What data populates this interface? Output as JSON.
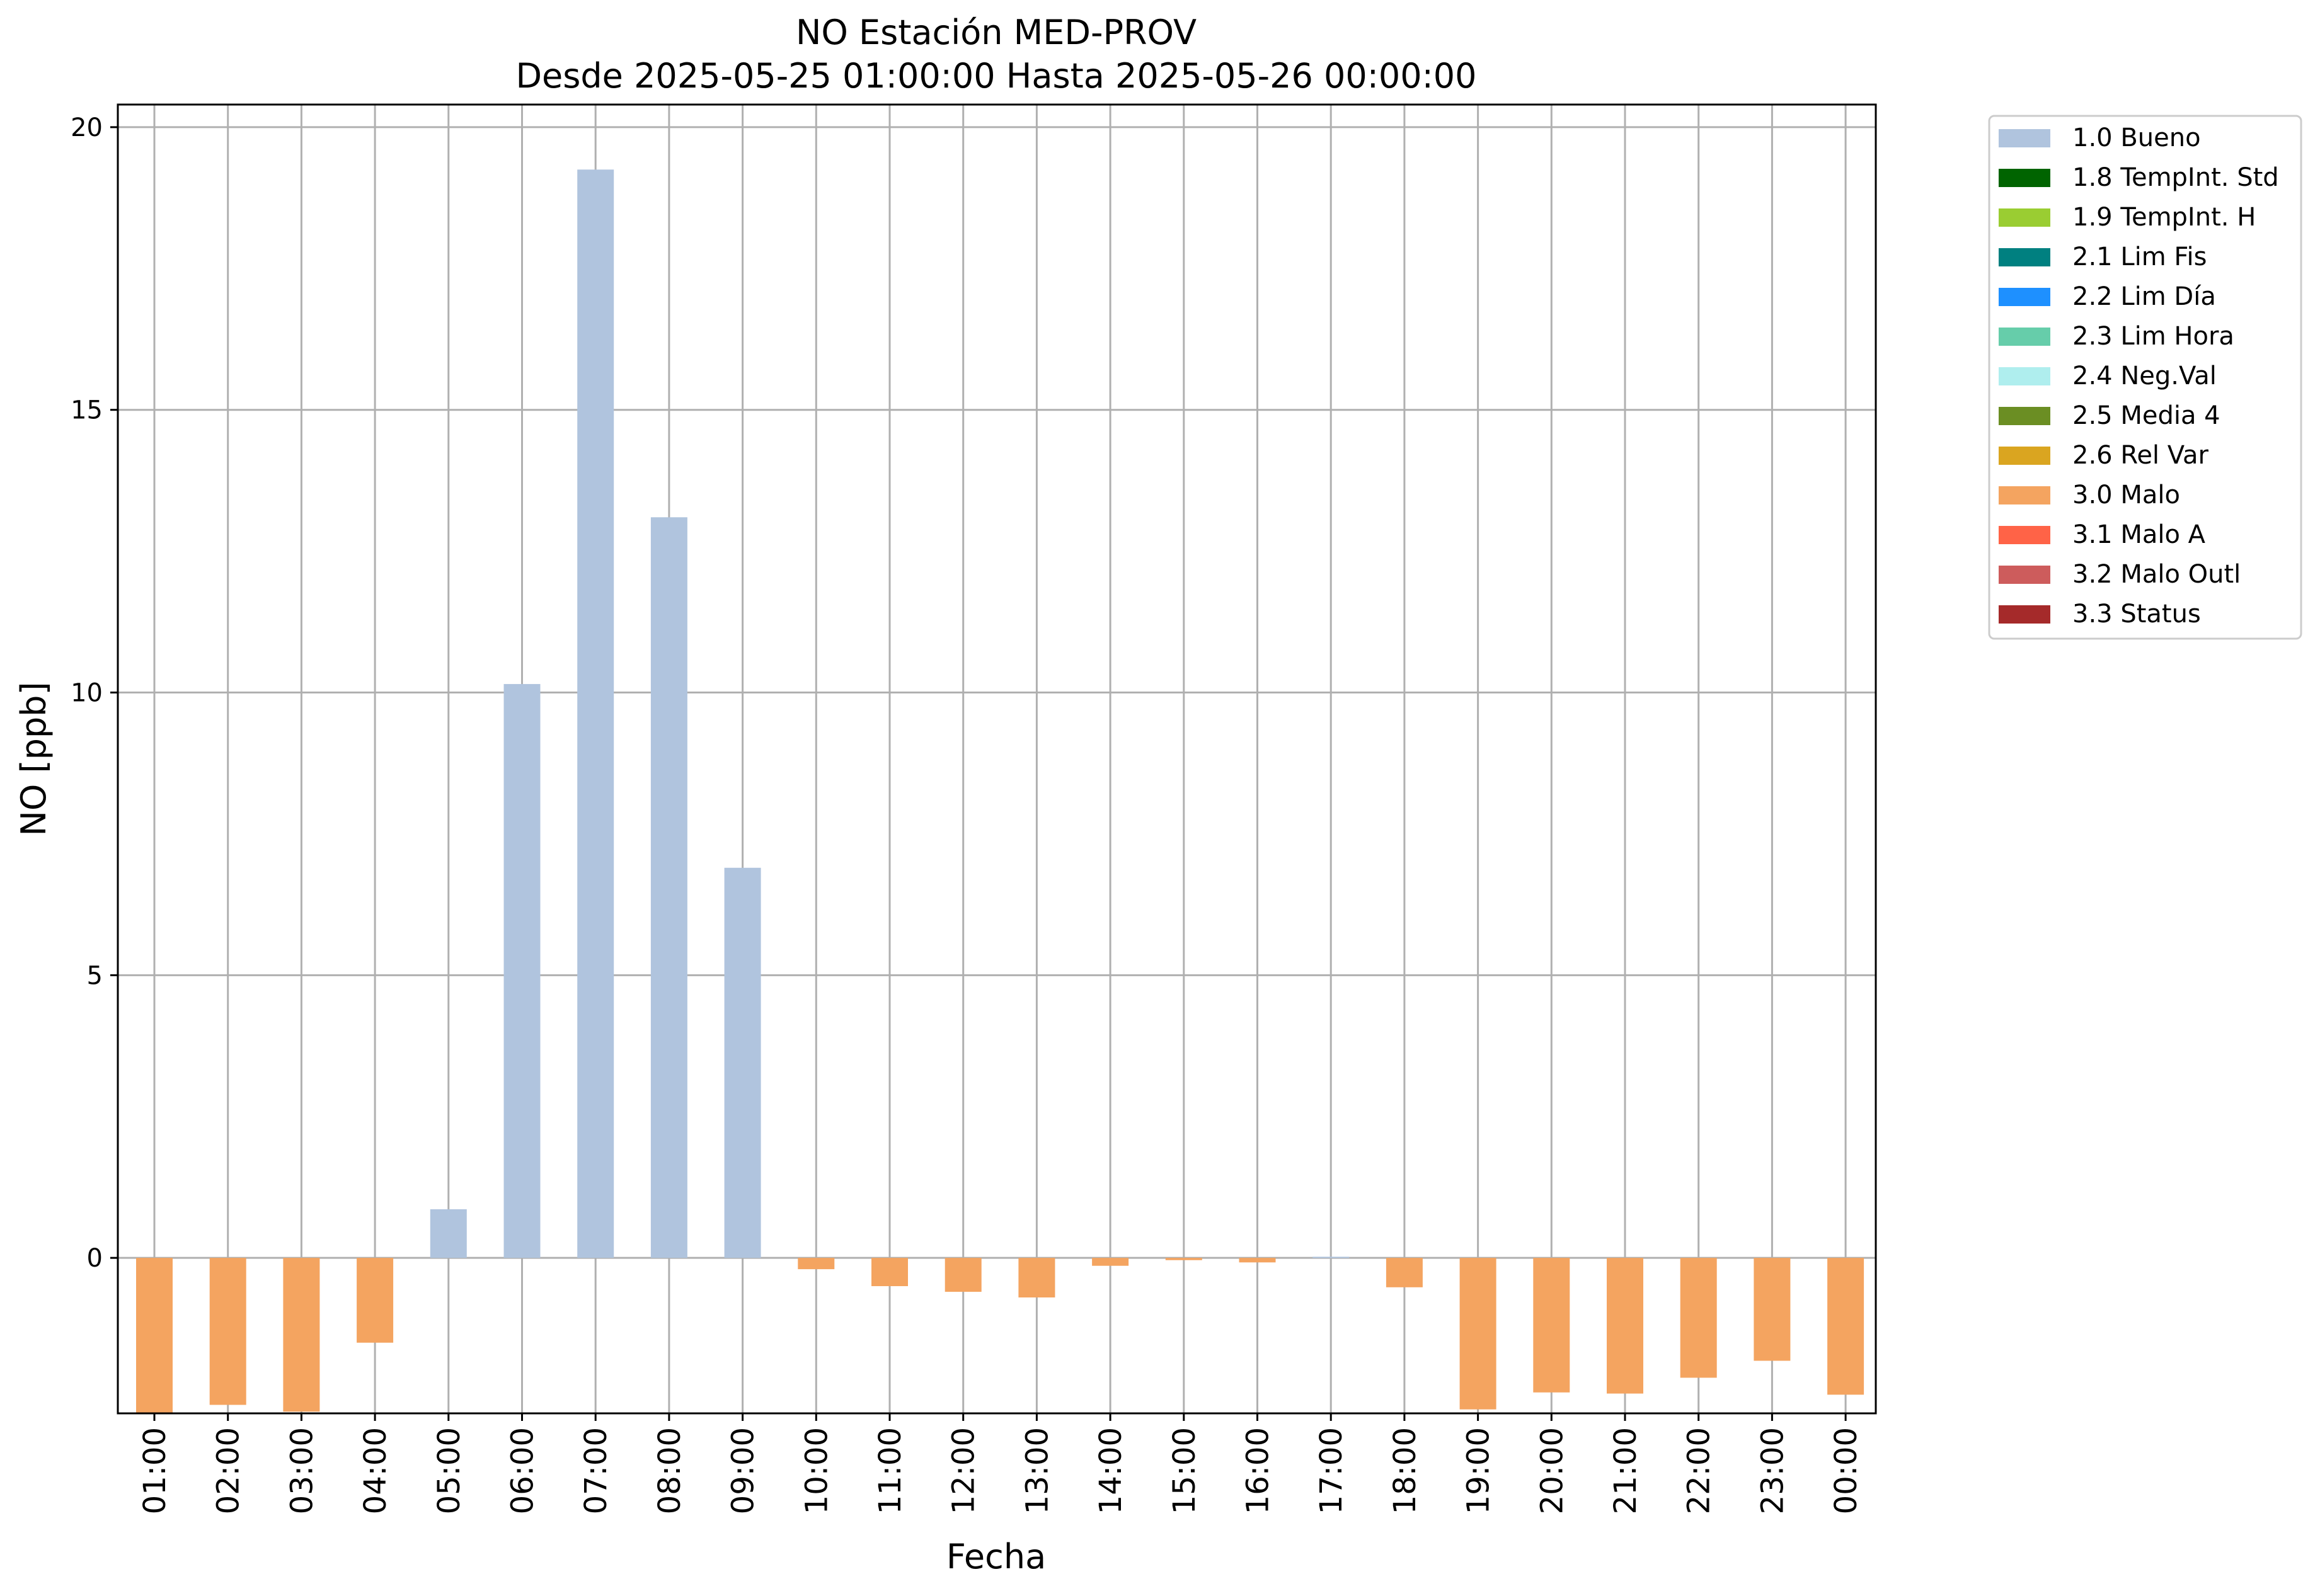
{
  "chart_data": {
    "type": "bar",
    "title": "NO Estación MED-PROV",
    "subtitle": "Desde 2025-05-25 01:00:00 Hasta 2025-05-26 00:00:00",
    "xlabel": "Fecha",
    "ylabel": "NO [ppb]",
    "ylim": [
      -2.75,
      20.4
    ],
    "yticks": [
      0,
      5,
      10,
      15,
      20
    ],
    "grid": true,
    "legend_position": "outside-right",
    "categories": [
      "01:00",
      "02:00",
      "03:00",
      "04:00",
      "05:00",
      "06:00",
      "07:00",
      "08:00",
      "09:00",
      "10:00",
      "11:00",
      "12:00",
      "13:00",
      "14:00",
      "15:00",
      "16:00",
      "17:00",
      "18:00",
      "19:00",
      "20:00",
      "21:00",
      "22:00",
      "23:00",
      "00:00"
    ],
    "values": [
      -2.78,
      -2.6,
      -2.72,
      -1.5,
      0.86,
      10.15,
      19.25,
      13.1,
      6.9,
      -0.2,
      -0.5,
      -0.6,
      -0.7,
      -0.14,
      -0.04,
      -0.08,
      0.02,
      -0.52,
      -2.68,
      -2.38,
      -2.4,
      -2.12,
      -1.82,
      -2.42
    ],
    "flags": [
      "3.0 Malo",
      "3.0 Malo",
      "3.0 Malo",
      "3.0 Malo",
      "1.0 Bueno",
      "1.0 Bueno",
      "1.0 Bueno",
      "1.0 Bueno",
      "1.0 Bueno",
      "3.0 Malo",
      "3.0 Malo",
      "3.0 Malo",
      "3.0 Malo",
      "3.0 Malo",
      "3.0 Malo",
      "3.0 Malo",
      "1.0 Bueno",
      "3.0 Malo",
      "3.0 Malo",
      "3.0 Malo",
      "3.0 Malo",
      "3.0 Malo",
      "3.0 Malo",
      "3.0 Malo"
    ],
    "legend": [
      {
        "label": "1.0 Bueno",
        "color": "#b0c4de"
      },
      {
        "label": "1.8 TempInt. Std",
        "color": "#006400"
      },
      {
        "label": "1.9 TempInt. H",
        "color": "#9acd32"
      },
      {
        "label": "2.1 Lim Fis",
        "color": "#008080"
      },
      {
        "label": "2.2 Lim Día",
        "color": "#1e90ff"
      },
      {
        "label": "2.3 Lim Hora",
        "color": "#66cdaa"
      },
      {
        "label": "2.4 Neg.Val",
        "color": "#afeeee"
      },
      {
        "label": "2.5 Media 4",
        "color": "#6b8e23"
      },
      {
        "label": "2.6 Rel Var",
        "color": "#daa520"
      },
      {
        "label": "3.0 Malo",
        "color": "#f4a460"
      },
      {
        "label": "3.1 Malo A",
        "color": "#ff6347"
      },
      {
        "label": "3.2 Malo Outl",
        "color": "#cd5c5c"
      },
      {
        "label": "3.3 Status",
        "color": "#a52a2a"
      }
    ]
  }
}
